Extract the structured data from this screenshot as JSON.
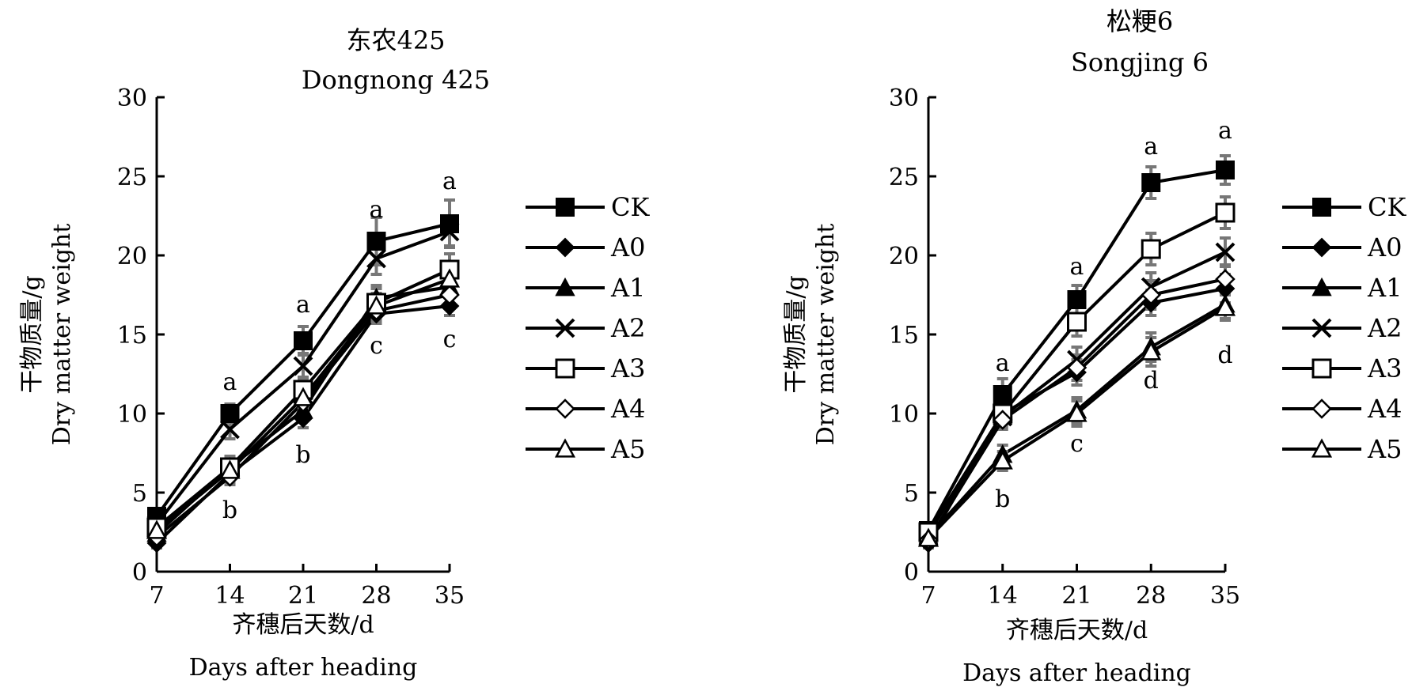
{
  "chart_data": [
    {
      "type": "line",
      "title": "东农425",
      "subtitle": "Dongnong 425",
      "xlabel": "齐穗后天数/d",
      "xlabel_en": "Days after heading",
      "ylabel": "干物质量/g",
      "ylabel_en": "Dry matter weight",
      "x": [
        7,
        14,
        21,
        28,
        35
      ],
      "x_tick_labels": [
        "7",
        "14",
        "21",
        "28",
        "35"
      ],
      "xlim": [
        7,
        35
      ],
      "ylim": [
        0,
        30
      ],
      "y_ticks": [
        0,
        5,
        10,
        15,
        20,
        25,
        30
      ],
      "y_tick_labels": [
        "0",
        "5",
        "10",
        "15",
        "20",
        "25",
        "30"
      ],
      "grid": false,
      "legend_position": "right",
      "series": [
        {
          "name": "CK",
          "marker": "square-filled",
          "values": [
            3.5,
            10.0,
            14.6,
            20.9,
            22.0
          ],
          "error": [
            0.4,
            0.6,
            0.9,
            1.5,
            1.5
          ]
        },
        {
          "name": "A0",
          "marker": "diamond-filled",
          "values": [
            1.8,
            6.2,
            9.7,
            16.3,
            16.8
          ],
          "error": [
            0.3,
            0.5,
            0.6,
            0.6,
            0.6
          ]
        },
        {
          "name": "A1",
          "marker": "triangle-filled",
          "values": [
            2.4,
            6.6,
            10.2,
            17.3,
            18.0
          ],
          "error": [
            0.3,
            0.5,
            0.6,
            0.8,
            0.7
          ]
        },
        {
          "name": "A2",
          "marker": "x",
          "values": [
            3.0,
            9.0,
            13.0,
            19.8,
            21.5
          ],
          "error": [
            0.3,
            0.6,
            0.8,
            1.0,
            0.9
          ]
        },
        {
          "name": "A3",
          "marker": "square-open",
          "values": [
            2.8,
            6.6,
            11.5,
            17.0,
            19.1
          ],
          "error": [
            0.3,
            0.7,
            0.8,
            0.9,
            1.0
          ]
        },
        {
          "name": "A4",
          "marker": "diamond-open",
          "values": [
            2.2,
            6.0,
            10.7,
            16.5,
            17.5
          ],
          "error": [
            0.3,
            0.5,
            0.7,
            0.7,
            0.8
          ]
        },
        {
          "name": "A5",
          "marker": "triangle-open",
          "values": [
            2.6,
            6.4,
            11.0,
            16.8,
            18.5
          ],
          "error": [
            0.3,
            0.5,
            0.7,
            0.8,
            0.9
          ]
        }
      ],
      "annotations": [
        {
          "x": 14,
          "y": 11.5,
          "text": "a"
        },
        {
          "x": 14,
          "y": 3.4,
          "text": "b"
        },
        {
          "x": 21,
          "y": 16.4,
          "text": "a"
        },
        {
          "x": 21,
          "y": 6.9,
          "text": "b"
        },
        {
          "x": 28,
          "y": 22.4,
          "text": "a"
        },
        {
          "x": 28,
          "y": 13.8,
          "text": "c"
        },
        {
          "x": 35,
          "y": 24.2,
          "text": "a"
        },
        {
          "x": 35,
          "y": 14.2,
          "text": "c"
        }
      ]
    },
    {
      "type": "line",
      "title": "松粳6",
      "subtitle": "Songjing 6",
      "xlabel": "齐穗后天数/d",
      "xlabel_en": "Days after heading",
      "ylabel": "干物质量/g",
      "ylabel_en": "Dry matter weight",
      "x": [
        7,
        14,
        21,
        28,
        35
      ],
      "x_tick_labels": [
        "7",
        "14",
        "21",
        "28",
        "35"
      ],
      "xlim": [
        7,
        35
      ],
      "ylim": [
        0,
        30
      ],
      "y_ticks": [
        0,
        5,
        10,
        15,
        20,
        25,
        30
      ],
      "y_tick_labels": [
        "0",
        "5",
        "10",
        "15",
        "20",
        "25",
        "30"
      ],
      "grid": false,
      "legend_position": "right",
      "series": [
        {
          "name": "CK",
          "marker": "square-filled",
          "values": [
            2.6,
            11.2,
            17.2,
            24.6,
            25.4
          ],
          "error": [
            0.4,
            1.0,
            0.9,
            1.0,
            0.9
          ]
        },
        {
          "name": "A0",
          "marker": "diamond-filled",
          "values": [
            1.8,
            10.0,
            12.6,
            17.0,
            17.9
          ],
          "error": [
            0.3,
            0.6,
            0.8,
            0.8,
            0.9
          ]
        },
        {
          "name": "A1",
          "marker": "triangle-filled",
          "values": [
            2.2,
            7.4,
            10.2,
            14.2,
            16.9
          ],
          "error": [
            0.3,
            0.6,
            0.8,
            0.9,
            0.9
          ]
        },
        {
          "name": "A2",
          "marker": "x",
          "values": [
            2.4,
            9.8,
            13.4,
            18.0,
            20.2
          ],
          "error": [
            0.3,
            0.6,
            0.8,
            0.9,
            0.9
          ]
        },
        {
          "name": "A3",
          "marker": "square-open",
          "values": [
            2.5,
            10.0,
            15.8,
            20.4,
            22.7
          ],
          "error": [
            0.3,
            0.7,
            0.9,
            1.0,
            1.0
          ]
        },
        {
          "name": "A4",
          "marker": "diamond-open",
          "values": [
            2.0,
            9.6,
            12.9,
            17.5,
            18.5
          ],
          "error": [
            0.3,
            0.6,
            0.8,
            0.9,
            0.9
          ]
        },
        {
          "name": "A5",
          "marker": "triangle-open",
          "values": [
            2.1,
            7.0,
            10.0,
            13.9,
            16.7
          ],
          "error": [
            0.3,
            0.6,
            0.8,
            0.9,
            0.8
          ]
        }
      ],
      "annotations": [
        {
          "x": 14,
          "y": 12.7,
          "text": "a"
        },
        {
          "x": 14,
          "y": 4.1,
          "text": "b"
        },
        {
          "x": 21,
          "y": 18.8,
          "text": "a"
        },
        {
          "x": 21,
          "y": 7.6,
          "text": "c"
        },
        {
          "x": 28,
          "y": 26.4,
          "text": "a"
        },
        {
          "x": 28,
          "y": 11.6,
          "text": "d"
        },
        {
          "x": 35,
          "y": 27.4,
          "text": "a"
        },
        {
          "x": 35,
          "y": 13.2,
          "text": "d"
        }
      ]
    }
  ]
}
